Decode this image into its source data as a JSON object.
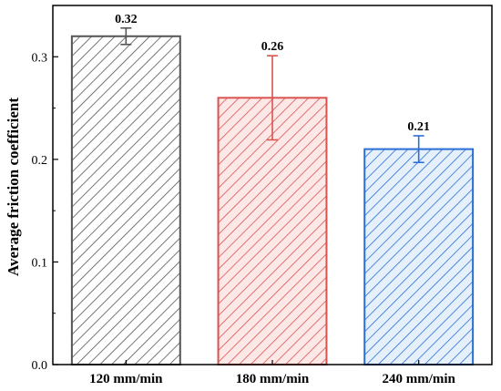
{
  "chart_data": {
    "type": "bar",
    "title": "",
    "xlabel": "",
    "ylabel": "Average friction coefficient",
    "categories": [
      "120 mm/min",
      "180 mm/min",
      "240 mm/min"
    ],
    "values": [
      0.32,
      0.26,
      0.21
    ],
    "errors": [
      0.008,
      0.041,
      0.013
    ],
    "data_labels": [
      "0.32",
      "0.26",
      "0.21"
    ],
    "yticks": [
      "0.0",
      "0.1",
      "0.2",
      "0.3"
    ],
    "ytick_values": [
      0.0,
      0.1,
      0.2,
      0.3
    ],
    "ylim": [
      0,
      0.35
    ],
    "grid": false,
    "legend": "none",
    "bar_fill": "hatched",
    "colors": [
      "#555555",
      "#d9534f",
      "#2a6fd6"
    ],
    "fill_colors": [
      "#ffffff",
      "#fde8e8",
      "#e6f0fb"
    ]
  }
}
